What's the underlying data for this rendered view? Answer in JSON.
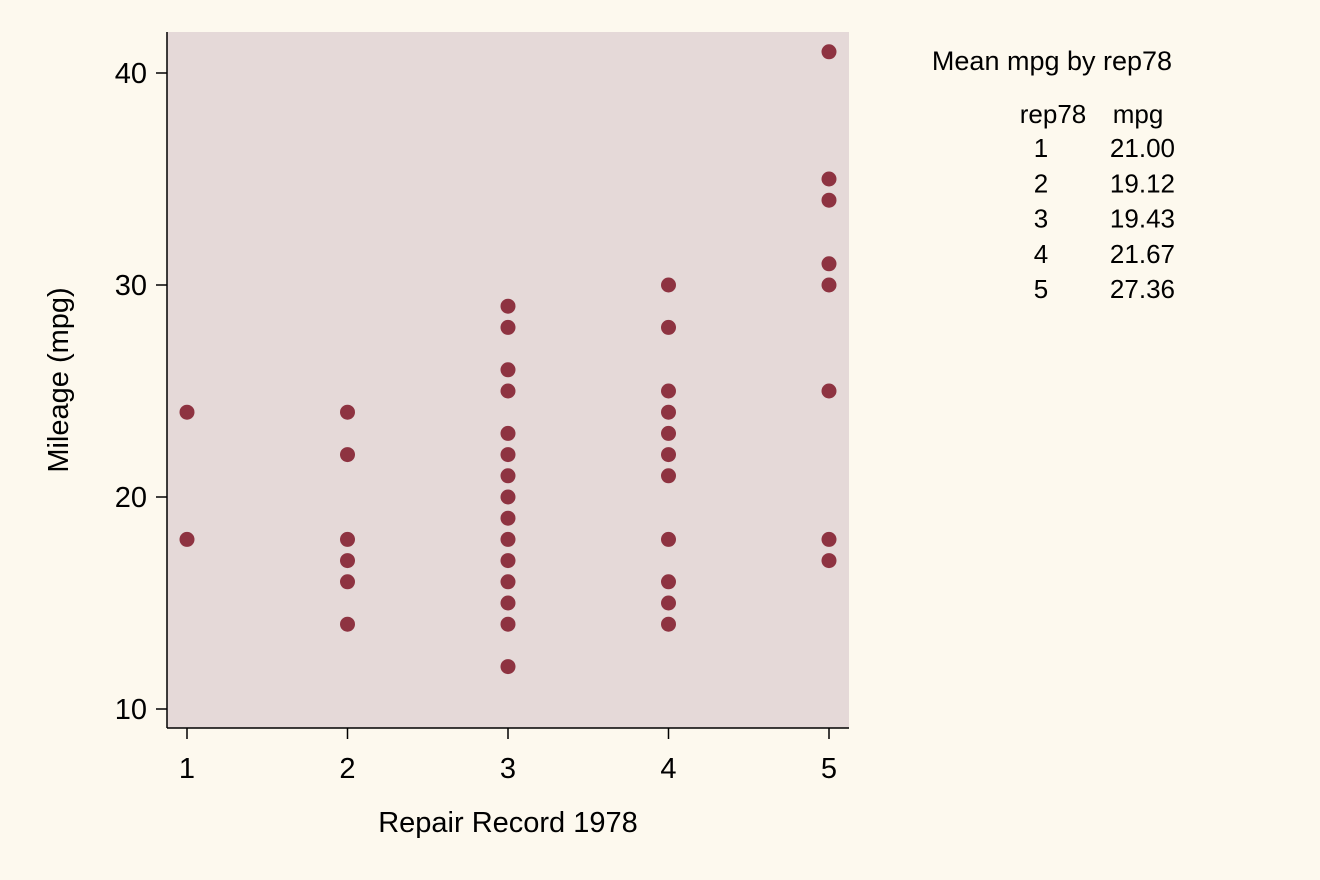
{
  "chart_data": {
    "type": "scatter",
    "xlabel": "Repair Record 1978",
    "ylabel": "Mileage (mpg)",
    "xlim": [
      1,
      5
    ],
    "ylim": [
      10,
      42
    ],
    "x_ticks": [
      "1",
      "2",
      "3",
      "4",
      "5"
    ],
    "y_ticks": [
      "10",
      "20",
      "30",
      "40"
    ],
    "grid": false,
    "colors": {
      "marker": "#8e3341",
      "plot_background": "#e5d9d8",
      "page_background": "#fdf9ee"
    },
    "points": [
      {
        "x": 1,
        "y": 24
      },
      {
        "x": 1,
        "y": 18
      },
      {
        "x": 2,
        "y": 24
      },
      {
        "x": 2,
        "y": 22
      },
      {
        "x": 2,
        "y": 18
      },
      {
        "x": 2,
        "y": 17
      },
      {
        "x": 2,
        "y": 16
      },
      {
        "x": 2,
        "y": 14
      },
      {
        "x": 3,
        "y": 29
      },
      {
        "x": 3,
        "y": 28
      },
      {
        "x": 3,
        "y": 26
      },
      {
        "x": 3,
        "y": 25
      },
      {
        "x": 3,
        "y": 23
      },
      {
        "x": 3,
        "y": 22
      },
      {
        "x": 3,
        "y": 21
      },
      {
        "x": 3,
        "y": 20
      },
      {
        "x": 3,
        "y": 19
      },
      {
        "x": 3,
        "y": 18
      },
      {
        "x": 3,
        "y": 17
      },
      {
        "x": 3,
        "y": 16
      },
      {
        "x": 3,
        "y": 15
      },
      {
        "x": 3,
        "y": 14
      },
      {
        "x": 3,
        "y": 12
      },
      {
        "x": 4,
        "y": 30
      },
      {
        "x": 4,
        "y": 28
      },
      {
        "x": 4,
        "y": 25
      },
      {
        "x": 4,
        "y": 24
      },
      {
        "x": 4,
        "y": 23
      },
      {
        "x": 4,
        "y": 22
      },
      {
        "x": 4,
        "y": 21
      },
      {
        "x": 4,
        "y": 18
      },
      {
        "x": 4,
        "y": 16
      },
      {
        "x": 4,
        "y": 15
      },
      {
        "x": 4,
        "y": 14
      },
      {
        "x": 5,
        "y": 41
      },
      {
        "x": 5,
        "y": 35
      },
      {
        "x": 5,
        "y": 34
      },
      {
        "x": 5,
        "y": 31
      },
      {
        "x": 5,
        "y": 30
      },
      {
        "x": 5,
        "y": 25
      },
      {
        "x": 5,
        "y": 18
      },
      {
        "x": 5,
        "y": 17
      }
    ],
    "annotation_table": {
      "title": "Mean mpg by rep78",
      "headers": [
        "rep78",
        "mpg"
      ],
      "rows": [
        [
          "1",
          "21.00"
        ],
        [
          "2",
          "19.12"
        ],
        [
          "3",
          "19.43"
        ],
        [
          "4",
          "21.67"
        ],
        [
          "5",
          "27.36"
        ]
      ]
    }
  }
}
